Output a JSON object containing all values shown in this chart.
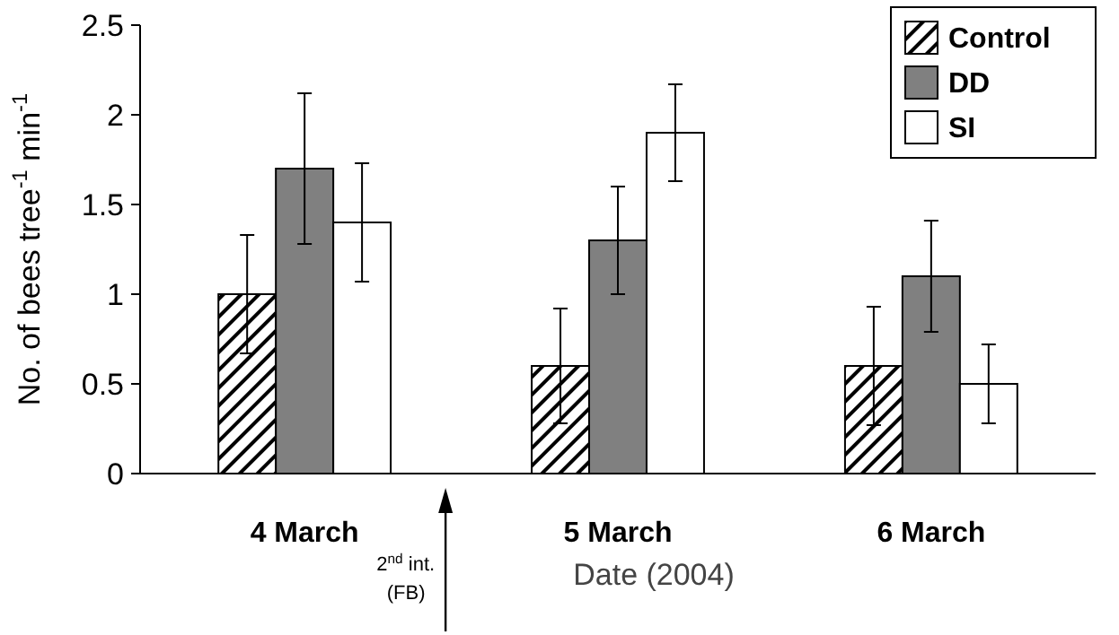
{
  "chart_data": {
    "type": "bar",
    "xlabel": "Date (2004)",
    "ylabel": "No. of bees tree$^{-1}$ min$^{-1}$",
    "categories": [
      "4 March",
      "5 March",
      "6 March"
    ],
    "series": [
      {
        "name": "Control",
        "color": "#000000",
        "values": [
          1.0,
          0.6,
          0.6
        ],
        "errors": [
          0.33,
          0.32,
          0.33
        ]
      },
      {
        "name": "DD",
        "color": "#808080",
        "values": [
          1.7,
          1.3,
          1.1
        ],
        "errors": [
          0.42,
          0.3,
          0.31
        ]
      },
      {
        "name": "SI",
        "color": "#ffffff",
        "values": [
          1.4,
          1.9,
          0.5
        ],
        "errors": [
          0.33,
          0.27,
          0.22
        ]
      }
    ],
    "ylim": [
      0,
      2.5
    ],
    "yticks": [
      {
        "value": 0,
        "label": "0"
      },
      {
        "value": 0.5,
        "label": "0.5"
      },
      {
        "value": 1,
        "label": "1"
      },
      {
        "value": 1.5,
        "label": "1.5"
      },
      {
        "value": 2,
        "label": "2"
      },
      {
        "value": 2.5,
        "label": "2.5"
      }
    ],
    "legend": "top right",
    "grid": false,
    "annotations": [
      "2$^{nd}$ int. (FB)"
    ]
  }
}
